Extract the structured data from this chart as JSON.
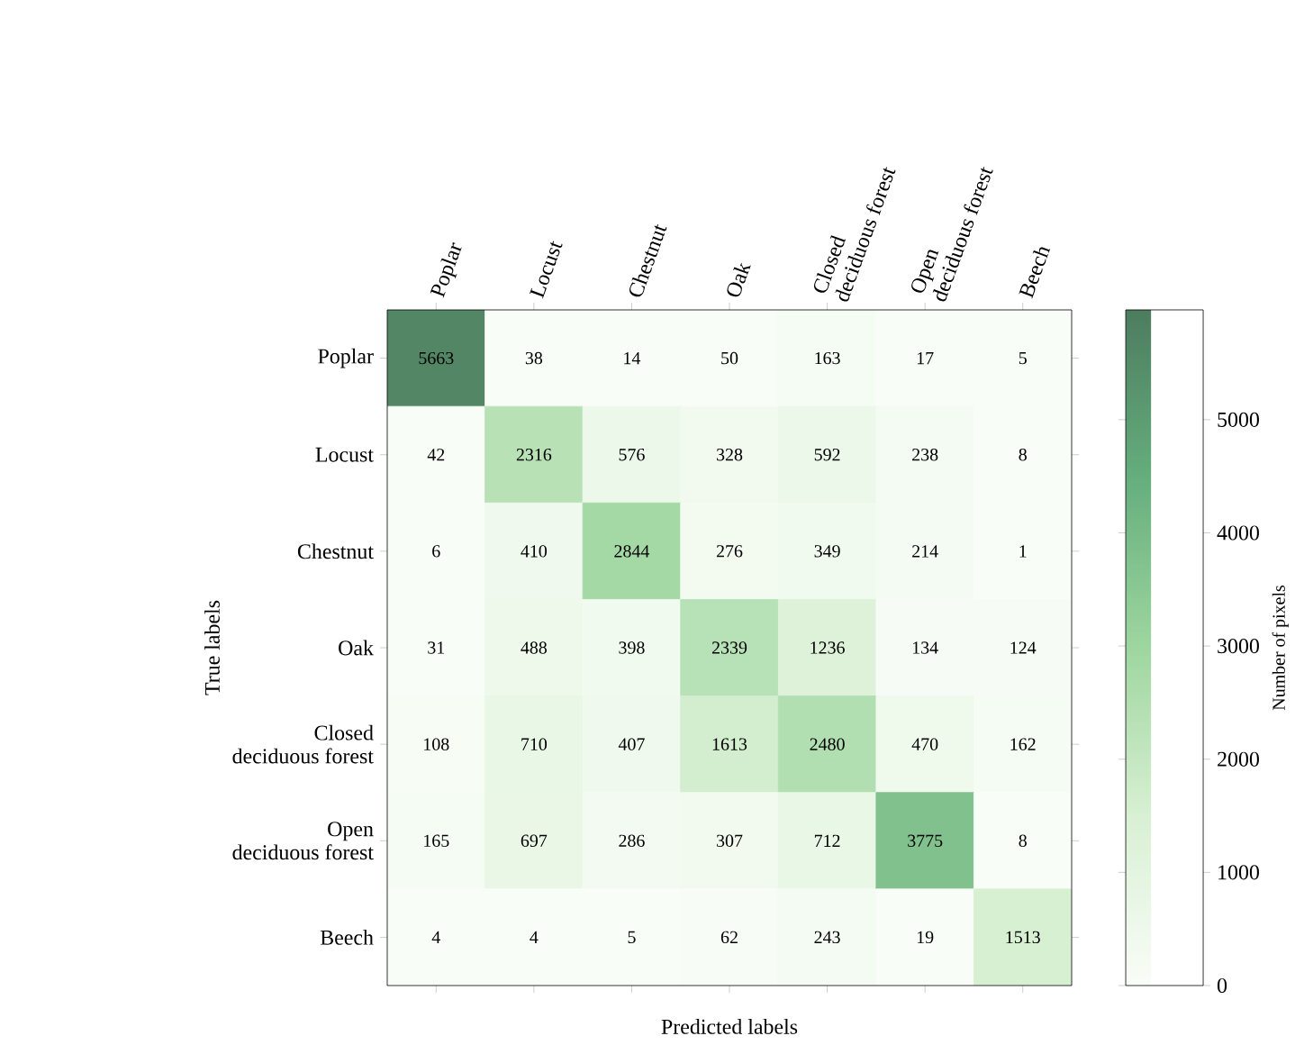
{
  "chart_data": {
    "type": "heatmap",
    "categories": [
      "Poplar",
      "Locust",
      "Chestnut",
      "Oak",
      "Closed\ndeciduous forest",
      "Open\ndeciduous forest",
      "Beech"
    ],
    "y_categories": [
      "Poplar",
      "Locust",
      "Chestnut",
      "Oak",
      "Closed\ndeciduous forest",
      "Open\ndeciduous forest",
      "Beech"
    ],
    "cells": [
      [
        5663,
        38,
        14,
        50,
        163,
        17,
        5
      ],
      [
        42,
        2316,
        576,
        328,
        592,
        238,
        8
      ],
      [
        6,
        410,
        2844,
        276,
        349,
        214,
        1
      ],
      [
        31,
        488,
        398,
        2339,
        1236,
        134,
        124
      ],
      [
        108,
        710,
        407,
        1613,
        2480,
        470,
        162
      ],
      [
        165,
        697,
        286,
        307,
        712,
        3775,
        8
      ],
      [
        4,
        4,
        5,
        62,
        243,
        19,
        1513
      ]
    ],
    "data_labels": true,
    "xlabel": "Predicted labels",
    "ylabel": "True labels",
    "clabel": "Number of pixels",
    "clim": [
      0,
      5970
    ],
    "cticks": [
      0,
      1000,
      2000,
      3000,
      4000,
      5000
    ]
  }
}
